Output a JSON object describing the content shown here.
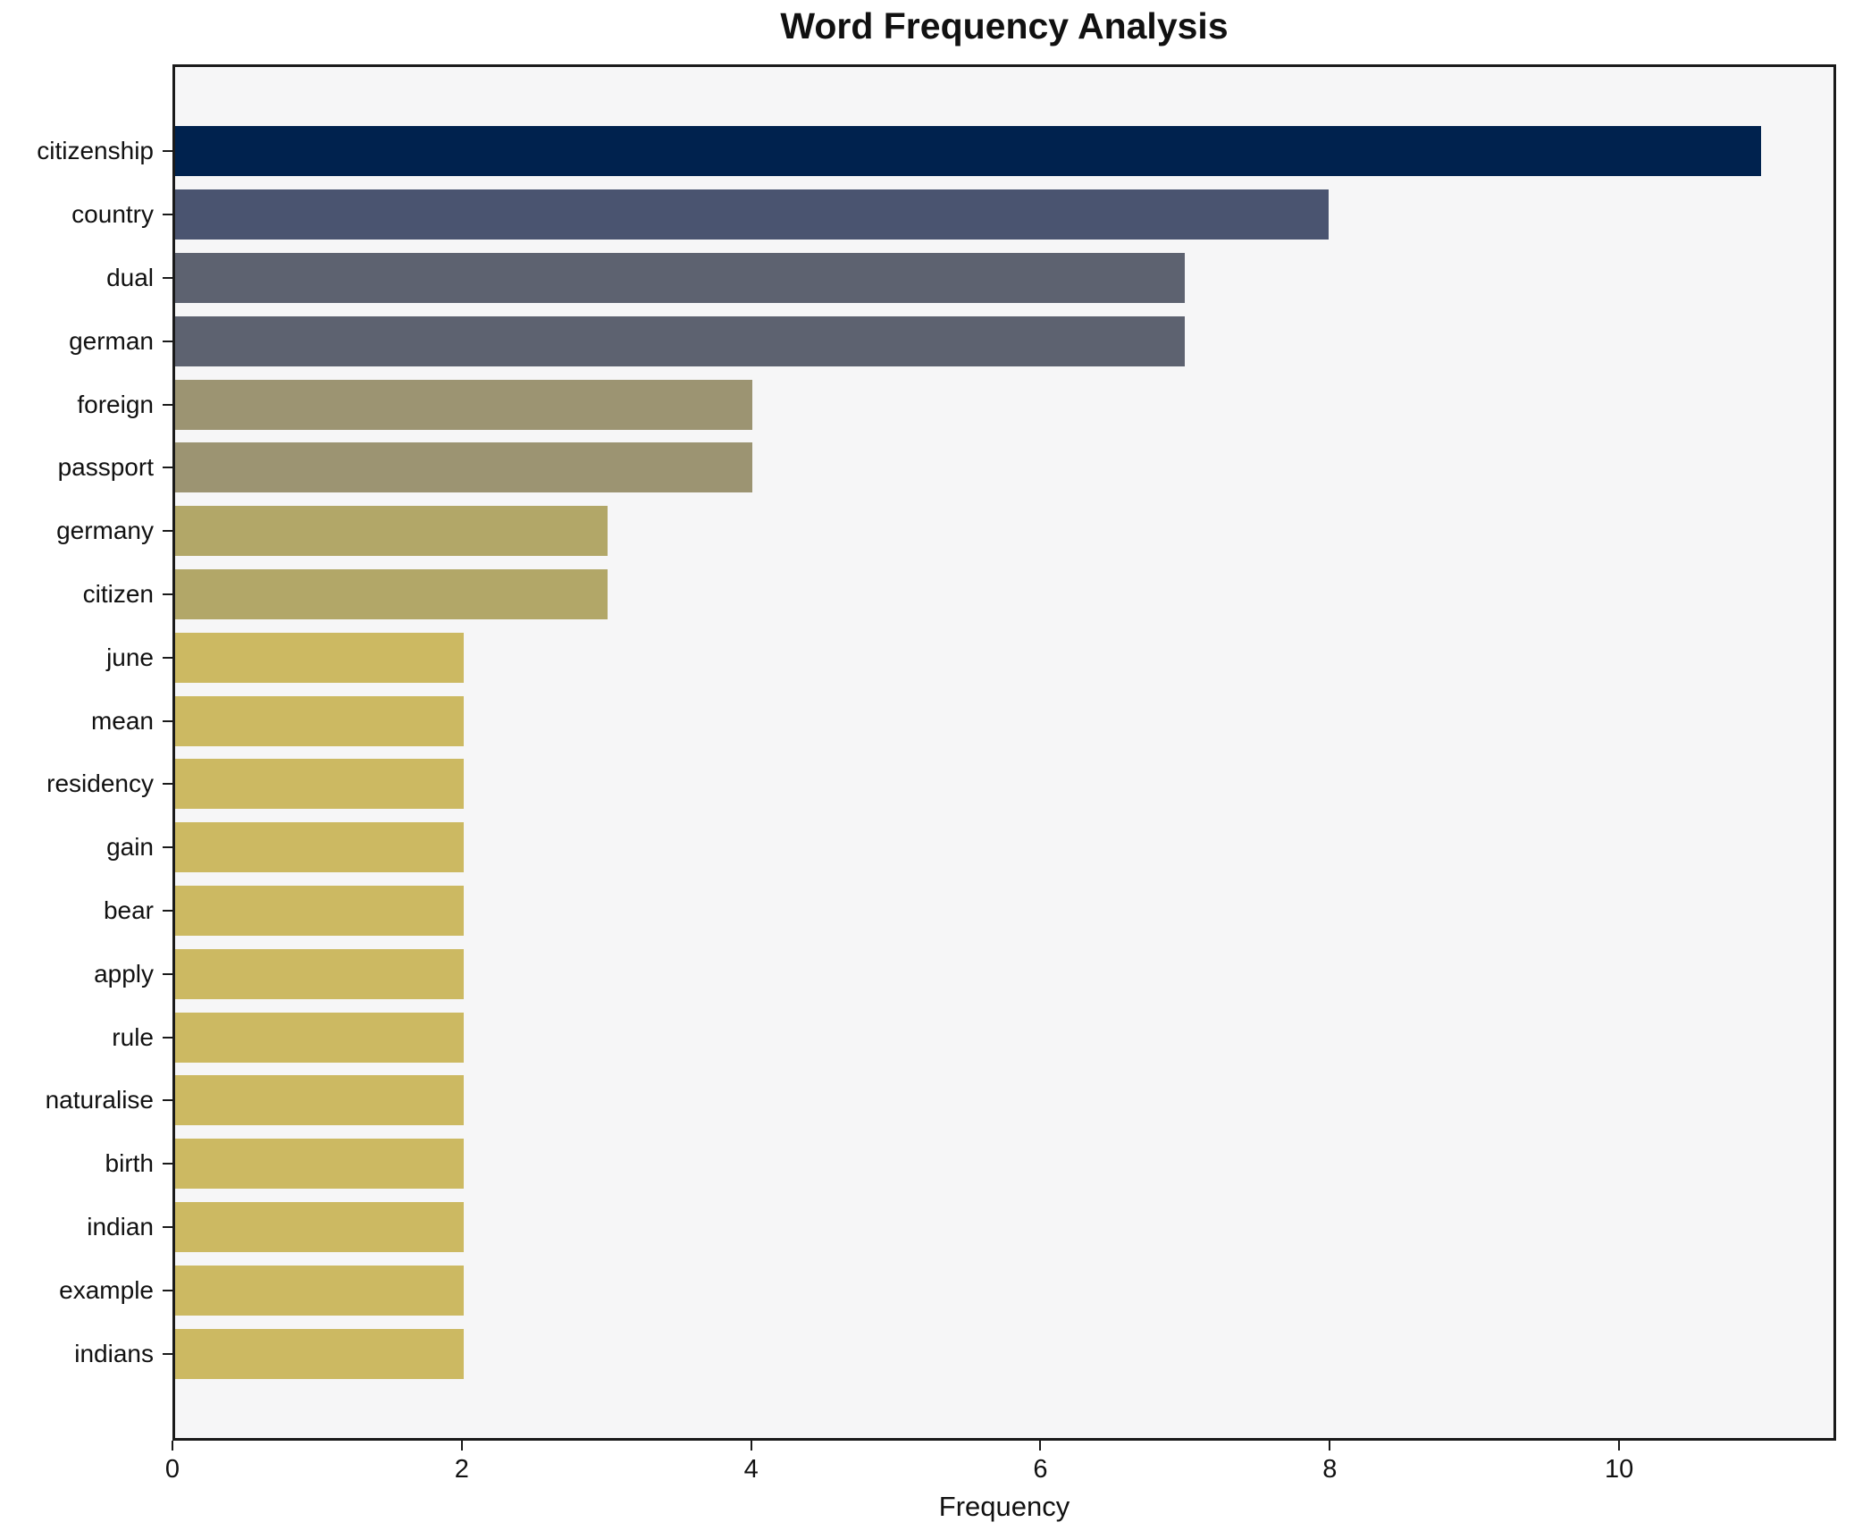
{
  "chart_data": {
    "type": "bar",
    "orientation": "horizontal",
    "title": "Word Frequency Analysis",
    "xlabel": "Frequency",
    "ylabel": "",
    "categories": [
      "citizenship",
      "country",
      "dual",
      "german",
      "foreign",
      "passport",
      "germany",
      "citizen",
      "june",
      "mean",
      "residency",
      "gain",
      "bear",
      "apply",
      "rule",
      "naturalise",
      "birth",
      "indian",
      "example",
      "indians"
    ],
    "values": [
      11,
      8,
      7,
      7,
      4,
      4,
      3,
      3,
      2,
      2,
      2,
      2,
      2,
      2,
      2,
      2,
      2,
      2,
      2,
      2
    ],
    "bar_colors": [
      "#00224e",
      "#4a5470",
      "#5d6270",
      "#5d6270",
      "#9c9472",
      "#9c9472",
      "#b2a768",
      "#b2a768",
      "#ccb962",
      "#ccb962",
      "#ccb962",
      "#ccb962",
      "#ccb962",
      "#ccb962",
      "#ccb962",
      "#ccb962",
      "#ccb962",
      "#ccb962",
      "#ccb962",
      "#ccb962"
    ],
    "xlim": [
      0,
      11.5
    ],
    "xticks": [
      0,
      2,
      4,
      6,
      8,
      10
    ],
    "grid": false,
    "legend_position": "none",
    "plot_background": "#f6f6f7",
    "figure_background": "#ffffff",
    "text_color": "#111111"
  }
}
